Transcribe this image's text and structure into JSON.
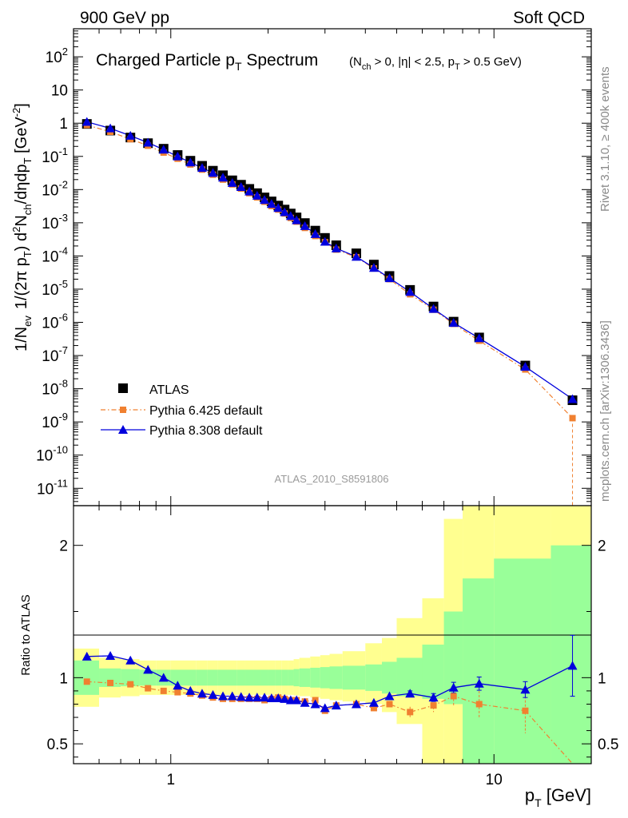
{
  "header": {
    "left": "900 GeV pp",
    "right": "Soft QCD"
  },
  "side_labels": {
    "rivet": "Rivet 3.1.10, ≥ 400k events",
    "mcplots": "mcplots.cern.ch [arXiv:1306.3436]"
  },
  "chart_data": [
    {
      "type": "scatter",
      "panel": "main",
      "title_main": "Charged Particle p",
      "title_main_sub": "T",
      "title_main_tail": " Spectrum",
      "title_cond": "(N",
      "title_cond_sub": "ch",
      "title_cond_mid": " > 0, |η| < 2.5, p",
      "title_cond_sub2": "T",
      "title_cond_tail": " > 0.5 GeV)",
      "analysis_id": "ATLAS_2010_S8591806",
      "ylabel": "1/N_ev 1/(2π p_T) d²N_ch/dηdp_T [GeV⁻²]",
      "ylabel_parts": {
        "a": "1/N",
        "a_sub": "ev",
        "b": "1/(2π p",
        "b_sub": "T",
        "c": ")  d",
        "c_sup": "2",
        "d": "N",
        "d_sub": "ch",
        "e": "/dηdp",
        "e_sub": "T",
        "f": " [GeV",
        "f_sup": "-2",
        "g": "]"
      },
      "x_scale": "log",
      "y_scale": "log",
      "xlim": [
        0.5,
        20
      ],
      "ylim": [
        3e-12,
        700
      ],
      "y_ticks": [
        {
          "value": 100,
          "mant": "10",
          "exp": "2"
        },
        {
          "value": 10,
          "mant": "10",
          "exp": ""
        },
        {
          "value": 1,
          "mant": "1",
          "exp": ""
        },
        {
          "value": 0.1,
          "mant": "10",
          "exp": "-1"
        },
        {
          "value": 0.01,
          "mant": "10",
          "exp": "-2"
        },
        {
          "value": 0.001,
          "mant": "10",
          "exp": "-3"
        },
        {
          "value": 0.0001,
          "mant": "10",
          "exp": "-4"
        },
        {
          "value": 1e-05,
          "mant": "10",
          "exp": "-5"
        },
        {
          "value": 1e-06,
          "mant": "10",
          "exp": "-6"
        },
        {
          "value": 1e-07,
          "mant": "10",
          "exp": "-7"
        },
        {
          "value": 1e-08,
          "mant": "10",
          "exp": "-8"
        },
        {
          "value": 1e-09,
          "mant": "10",
          "exp": "-9"
        },
        {
          "value": 1e-10,
          "mant": "10",
          "exp": "-10"
        },
        {
          "value": 1e-11,
          "mant": "10",
          "exp": "-11"
        }
      ],
      "legend_position": "bottom-left",
      "series": [
        {
          "name": "ATLAS",
          "color": "#000000",
          "marker": "square",
          "x": [
            0.55,
            0.65,
            0.75,
            0.85,
            0.95,
            1.05,
            1.15,
            1.25,
            1.35,
            1.45,
            1.55,
            1.65,
            1.75,
            1.85,
            1.95,
            2.05,
            2.15,
            2.25,
            2.35,
            2.45,
            2.6,
            2.8,
            3.0,
            3.25,
            3.75,
            4.25,
            4.75,
            5.5,
            6.5,
            7.5,
            9.0,
            12.5,
            17.5
          ],
          "y": [
            0.95,
            0.6,
            0.37,
            0.25,
            0.17,
            0.11,
            0.074,
            0.052,
            0.037,
            0.027,
            0.019,
            0.014,
            0.0105,
            0.0078,
            0.0058,
            0.0044,
            0.0033,
            0.0025,
            0.0019,
            0.00145,
            0.00098,
            0.00058,
            0.00035,
            0.00021,
            0.00012,
            5.5e-05,
            2.5e-05,
            9.5e-06,
            3e-06,
            1.05e-06,
            3.5e-07,
            5e-08,
            4.5e-09
          ]
        },
        {
          "name": "Pythia 6.425 default",
          "color": "#f08030",
          "marker": "square-small",
          "line": "dash-dot",
          "x": [
            0.55,
            0.65,
            0.75,
            0.85,
            0.95,
            1.05,
            1.15,
            1.25,
            1.35,
            1.45,
            1.55,
            1.65,
            1.75,
            1.85,
            1.95,
            2.05,
            2.15,
            2.25,
            2.35,
            2.45,
            2.6,
            2.8,
            3.0,
            3.25,
            3.75,
            4.25,
            4.75,
            5.5,
            6.5,
            7.5,
            9.0,
            12.5,
            17.5
          ],
          "y": [
            0.88,
            0.55,
            0.33,
            0.21,
            0.13,
            0.085,
            0.057,
            0.04,
            0.028,
            0.02,
            0.0143,
            0.0107,
            0.0078,
            0.0058,
            0.0043,
            0.0032,
            0.0025,
            0.0019,
            0.0014,
            0.00108,
            0.0007,
            0.0004,
            0.00026,
            0.000155,
            9.2e-05,
            4.2e-05,
            2e-05,
            7e-06,
            2.4e-06,
            9e-07,
            2.8e-07,
            3.8e-08,
            1.3e-09
          ]
        },
        {
          "name": "Pythia 8.308 default",
          "color": "#0000dd",
          "marker": "triangle",
          "line": "solid",
          "x": [
            0.55,
            0.65,
            0.75,
            0.85,
            0.95,
            1.05,
            1.15,
            1.25,
            1.35,
            1.45,
            1.55,
            1.65,
            1.75,
            1.85,
            1.95,
            2.05,
            2.15,
            2.25,
            2.35,
            2.45,
            2.6,
            2.8,
            3.0,
            3.25,
            3.75,
            4.25,
            4.75,
            5.5,
            6.5,
            7.5,
            9.0,
            12.5,
            17.5
          ],
          "y": [
            1.1,
            0.7,
            0.42,
            0.26,
            0.16,
            0.1,
            0.066,
            0.045,
            0.032,
            0.023,
            0.016,
            0.012,
            0.0088,
            0.0066,
            0.0049,
            0.0037,
            0.0028,
            0.0021,
            0.0016,
            0.0012,
            0.0008,
            0.00046,
            0.00027,
            0.00017,
            9.5e-05,
            4.4e-05,
            2.15e-05,
            8.3e-06,
            2.55e-06,
            9.7e-07,
            3.35e-07,
            4.6e-08,
            4.9e-09
          ]
        }
      ]
    },
    {
      "type": "scatter",
      "panel": "ratio",
      "ylabel": "Ratio to ATLAS",
      "x_scale": "log",
      "xlabel_main": "p",
      "xlabel_sub": "T",
      "xlabel_tail": " [GeV]",
      "xlim": [
        0.5,
        20
      ],
      "ylim": [
        0.35,
        2.3
      ],
      "y_ticks": [
        {
          "value": 0.5,
          "label": "0.5"
        },
        {
          "value": 1,
          "label": "1"
        },
        {
          "value": 2,
          "label": "2"
        }
      ],
      "x_ticks": [
        {
          "value": 1,
          "label": "1"
        },
        {
          "value": 10,
          "label": "10"
        }
      ],
      "bands": {
        "edges": [
          0.5,
          0.6,
          0.7,
          0.8,
          0.9,
          1.0,
          1.1,
          1.2,
          1.3,
          1.4,
          1.5,
          1.6,
          1.7,
          1.8,
          1.9,
          2.0,
          2.1,
          2.2,
          2.3,
          2.4,
          2.5,
          2.7,
          2.9,
          3.1,
          3.4,
          4.0,
          4.5,
          5.0,
          6.0,
          7.0,
          8.0,
          10.0,
          15.0,
          20.0
        ],
        "green_lo": [
          0.87,
          0.93,
          0.935,
          0.94,
          0.94,
          0.94,
          0.94,
          0.94,
          0.94,
          0.94,
          0.94,
          0.94,
          0.94,
          0.94,
          0.94,
          0.94,
          0.94,
          0.94,
          0.94,
          0.935,
          0.93,
          0.925,
          0.92,
          0.915,
          0.91,
          0.9,
          0.88,
          0.86,
          0.84,
          0.8,
          0.0,
          0.0,
          0.0
        ],
        "green_hi": [
          1.13,
          1.07,
          1.065,
          1.06,
          1.06,
          1.06,
          1.06,
          1.06,
          1.06,
          1.06,
          1.06,
          1.06,
          1.06,
          1.06,
          1.06,
          1.06,
          1.06,
          1.06,
          1.06,
          1.065,
          1.07,
          1.075,
          1.08,
          1.085,
          1.09,
          1.1,
          1.12,
          1.15,
          1.25,
          1.5,
          1.75,
          1.9,
          2.0
        ],
        "yellow_lo": [
          0.78,
          0.85,
          0.86,
          0.87,
          0.87,
          0.87,
          0.87,
          0.87,
          0.87,
          0.87,
          0.87,
          0.87,
          0.87,
          0.87,
          0.87,
          0.87,
          0.87,
          0.87,
          0.87,
          0.865,
          0.86,
          0.85,
          0.84,
          0.83,
          0.82,
          0.8,
          0.74,
          0.65,
          0.0,
          0.0,
          0.0,
          0.0,
          0.0
        ],
        "yellow_hi": [
          1.22,
          1.15,
          1.14,
          1.13,
          1.13,
          1.13,
          1.13,
          1.13,
          1.13,
          1.13,
          1.13,
          1.13,
          1.13,
          1.13,
          1.13,
          1.13,
          1.13,
          1.13,
          1.13,
          1.14,
          1.15,
          1.16,
          1.17,
          1.18,
          1.2,
          1.26,
          1.3,
          1.45,
          1.6,
          2.2,
          2.5,
          2.5,
          2.5
        ]
      },
      "series": [
        {
          "name": "Pythia 6.425 default",
          "color": "#f08030",
          "x": [
            0.55,
            0.65,
            0.75,
            0.85,
            0.95,
            1.05,
            1.15,
            1.25,
            1.35,
            1.45,
            1.55,
            1.65,
            1.75,
            1.85,
            1.95,
            2.05,
            2.15,
            2.25,
            2.35,
            2.45,
            2.6,
            2.8,
            3.0,
            3.25,
            3.75,
            4.25,
            4.75,
            5.5,
            6.5,
            7.5,
            9.0,
            12.5,
            17.5
          ],
          "y": [
            0.97,
            0.96,
            0.95,
            0.92,
            0.9,
            0.89,
            0.88,
            0.865,
            0.85,
            0.84,
            0.84,
            0.84,
            0.84,
            0.84,
            0.83,
            0.84,
            0.85,
            0.84,
            0.83,
            0.83,
            0.82,
            0.83,
            0.75,
            0.79,
            0.8,
            0.77,
            0.8,
            0.74,
            0.79,
            0.86,
            0.8,
            0.75,
            0.28
          ]
        },
        {
          "name": "Pythia 8.308 default",
          "color": "#0000dd",
          "x": [
            0.55,
            0.65,
            0.75,
            0.85,
            0.95,
            1.05,
            1.15,
            1.25,
            1.35,
            1.45,
            1.55,
            1.65,
            1.75,
            1.85,
            1.95,
            2.05,
            2.15,
            2.25,
            2.35,
            2.45,
            2.6,
            2.8,
            3.0,
            3.25,
            3.75,
            4.25,
            4.75,
            5.5,
            6.5,
            7.5,
            9.0,
            12.5,
            17.5
          ],
          "y": [
            1.16,
            1.165,
            1.13,
            1.06,
            1.0,
            0.94,
            0.9,
            0.88,
            0.87,
            0.86,
            0.86,
            0.855,
            0.85,
            0.85,
            0.85,
            0.845,
            0.845,
            0.84,
            0.83,
            0.83,
            0.81,
            0.8,
            0.77,
            0.79,
            0.8,
            0.81,
            0.86,
            0.88,
            0.85,
            0.925,
            0.955,
            0.91,
            1.09
          ]
        }
      ]
    }
  ]
}
